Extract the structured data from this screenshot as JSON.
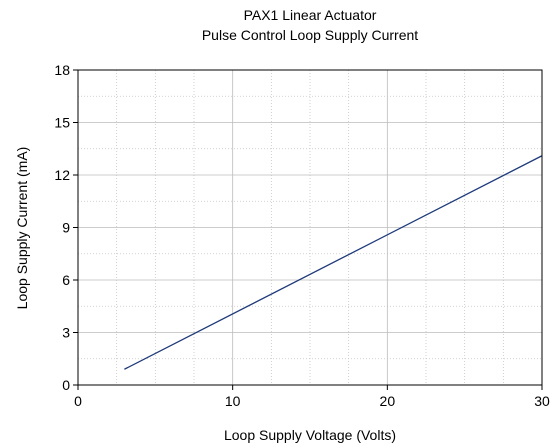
{
  "chart_data": {
    "type": "line",
    "title": "PAX1 Linear Actuator",
    "subtitle": "Pulse Control Loop Supply Current",
    "xlabel": "Loop Supply Voltage (Volts)",
    "ylabel": "Loop Supply Current (mA)",
    "xlim": [
      0,
      30
    ],
    "ylim": [
      0,
      18
    ],
    "x_ticks": [
      0,
      10,
      20,
      30
    ],
    "y_ticks": [
      0,
      3,
      6,
      9,
      12,
      15,
      18
    ],
    "x_minor_step": 2.5,
    "y_minor_step": 1.5,
    "grid": true,
    "legend": "none",
    "series": [
      {
        "color": "#1f3a7a",
        "x": [
          3,
          30
        ],
        "y": [
          0.9,
          13.1
        ]
      }
    ]
  }
}
